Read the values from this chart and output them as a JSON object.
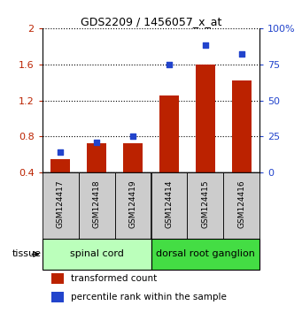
{
  "title": "GDS2209 / 1456057_x_at",
  "samples": [
    "GSM124417",
    "GSM124418",
    "GSM124419",
    "GSM124414",
    "GSM124415",
    "GSM124416"
  ],
  "red_values": [
    0.55,
    0.73,
    0.73,
    1.25,
    1.6,
    1.42
  ],
  "blue_values_pct": [
    14,
    21,
    25,
    75,
    88,
    82
  ],
  "red_color": "#bb2200",
  "blue_color": "#2244cc",
  "ylim_left": [
    0.4,
    2.0
  ],
  "ylim_right": [
    0,
    100
  ],
  "yticks_left": [
    0.4,
    0.8,
    1.2,
    1.6,
    2.0
  ],
  "yticks_right": [
    0,
    25,
    50,
    75,
    100
  ],
  "ytick_labels_left": [
    "0.4",
    "0.8",
    "1.2",
    "1.6",
    "2"
  ],
  "ytick_labels_right": [
    "0",
    "25",
    "50",
    "75",
    "100%"
  ],
  "tissue_groups": [
    {
      "label": "spinal cord",
      "indices": [
        0,
        1,
        2
      ],
      "color": "#bbffbb"
    },
    {
      "label": "dorsal root ganglion",
      "indices": [
        3,
        4,
        5
      ],
      "color": "#44dd44"
    }
  ],
  "tissue_label": "tissue",
  "legend_entries": [
    "transformed count",
    "percentile rank within the sample"
  ],
  "bar_bottom": 0.4,
  "bar_width": 0.55,
  "figsize": [
    3.41,
    3.54
  ],
  "dpi": 100
}
